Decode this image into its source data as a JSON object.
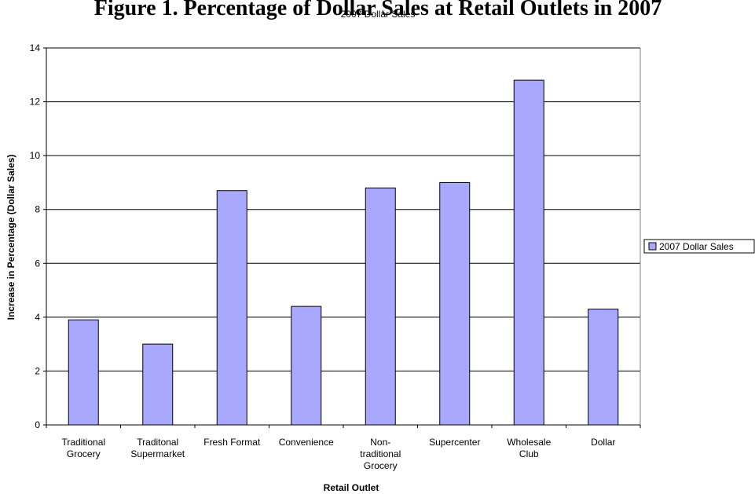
{
  "heading": "Figure 1. Percentage of Dollar Sales at Retail Outlets in 2007",
  "chart_data": {
    "type": "bar",
    "title": "2007 Dollar Sales",
    "xlabel": "Retail Outlet",
    "ylabel": "Increase in Percentage (Dollar Sales)",
    "ylim": [
      0,
      14
    ],
    "yticks": [
      "0",
      "2",
      "4",
      "6",
      "8",
      "10",
      "12",
      "14"
    ],
    "categories": [
      [
        "Traditional",
        "Grocery"
      ],
      [
        "Traditonal",
        "Supermarket"
      ],
      [
        "Fresh Format"
      ],
      [
        "Convenience"
      ],
      [
        "Non-",
        "traditional",
        "Grocery"
      ],
      [
        "Supercenter"
      ],
      [
        "Wholesale",
        "Club"
      ],
      [
        "Dollar"
      ]
    ],
    "series": [
      {
        "name": "2007 Dollar Sales",
        "values": [
          3.9,
          3.0,
          8.7,
          4.4,
          8.8,
          9.0,
          12.8,
          4.3
        ]
      }
    ],
    "grid": true,
    "legend": "right",
    "bar_color": "#a8a8ff",
    "border_color": "#000000"
  }
}
